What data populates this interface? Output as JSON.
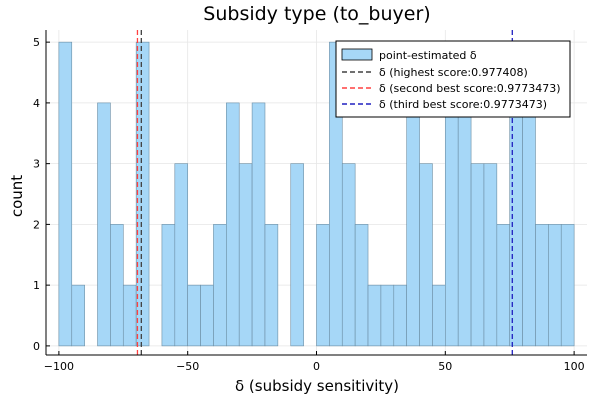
{
  "chart_data": {
    "type": "bar",
    "title": "Subsidy type (to_buyer)",
    "xlabel": "δ (subsidy sensitivity)",
    "ylabel": "count",
    "xlim": [
      -105,
      105
    ],
    "ylim": [
      -0.15,
      5.2
    ],
    "xticks": [
      -100,
      -50,
      0,
      50,
      100
    ],
    "xtick_labels": [
      "−100",
      "−50",
      "0",
      "50",
      "100"
    ],
    "yticks": [
      0,
      1,
      2,
      3,
      4,
      5
    ],
    "ytick_labels": [
      "0",
      "1",
      "2",
      "3",
      "4",
      "5"
    ],
    "grid": true,
    "legend_position": "top-right",
    "bin_width": 5,
    "bin_starts": [
      -100,
      -95,
      -90,
      -85,
      -80,
      -75,
      -70,
      -65,
      -60,
      -55,
      -50,
      -45,
      -40,
      -35,
      -30,
      -25,
      -20,
      -15,
      -10,
      -5,
      0,
      5,
      10,
      15,
      20,
      25,
      30,
      35,
      40,
      45,
      50,
      55,
      60,
      65,
      70,
      75,
      80,
      85,
      90,
      95
    ],
    "series": [
      {
        "name": "point-estimated δ",
        "color": "#a6d7f7",
        "values": [
          5,
          1,
          0,
          4,
          2,
          1,
          5,
          0,
          2,
          3,
          1,
          1,
          2,
          4,
          3,
          4,
          2,
          0,
          3,
          0,
          2,
          5,
          3,
          2,
          1,
          1,
          1,
          5,
          3,
          1,
          4,
          4,
          3,
          3,
          2,
          4,
          4,
          2,
          2,
          2
        ]
      }
    ],
    "vlines": [
      {
        "name": "δ (highest score:0.977408)",
        "x": -68,
        "color": "#404040"
      },
      {
        "name": "δ (second best score:0.9773473)",
        "x": -69.5,
        "color": "#ff4040"
      },
      {
        "name": "δ (third best score:0.9773473)",
        "x": 76,
        "color": "#2020c0"
      }
    ]
  }
}
